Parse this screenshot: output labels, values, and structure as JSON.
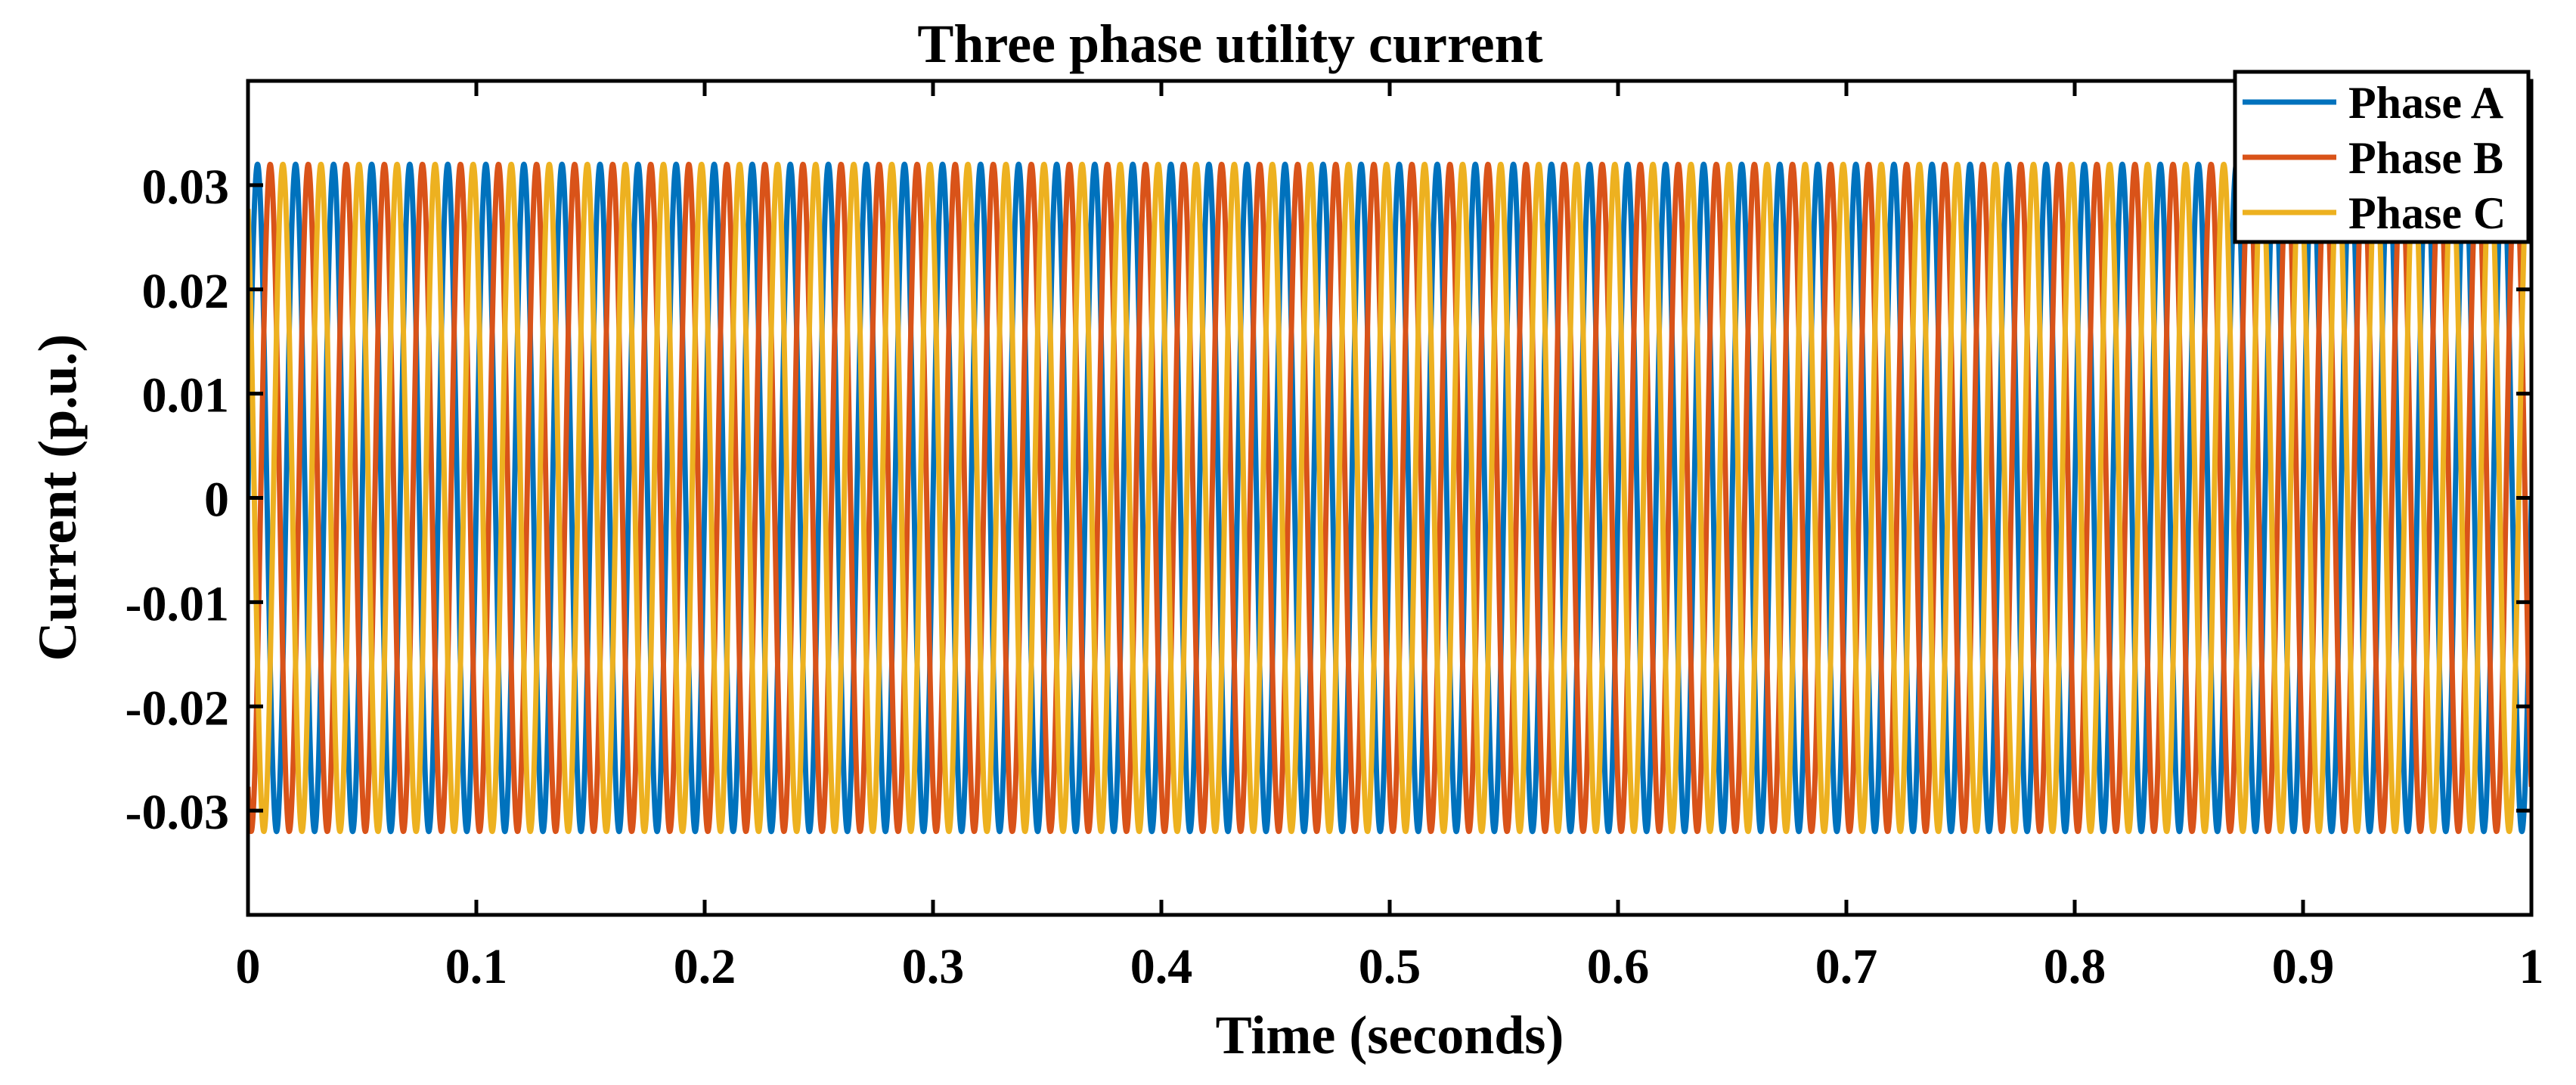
{
  "chart_data": {
    "type": "line",
    "title": "Three phase utility current",
    "xlabel": "Time (seconds)",
    "ylabel": "Current (p.u.)",
    "xlim": [
      0,
      1
    ],
    "ylim": [
      -0.04,
      0.04
    ],
    "x_ticks": [
      0,
      0.1,
      0.2,
      0.3,
      0.4,
      0.5,
      0.6,
      0.7,
      0.8,
      0.9,
      1
    ],
    "x_tick_labels": [
      "0",
      "0.1",
      "0.2",
      "0.3",
      "0.4",
      "0.5",
      "0.6",
      "0.7",
      "0.8",
      "0.9",
      "1"
    ],
    "y_ticks": [
      0.03,
      0.02,
      0.01,
      0,
      -0.01,
      -0.02,
      -0.03
    ],
    "y_tick_labels": [
      "0.03",
      "0.02",
      "0.01",
      "0",
      "-0.01",
      "-0.02",
      "-0.03"
    ],
    "grid": false,
    "legend_position": "top-right",
    "waveform": {
      "shape": "sine",
      "amplitude": 0.032,
      "frequency_hz": 60,
      "t_start": 0,
      "t_end": 1
    },
    "series": [
      {
        "name": "Phase A",
        "phase_deg": 0,
        "color": "#0072BD"
      },
      {
        "name": "Phase B",
        "phase_deg": -120,
        "color": "#D95319"
      },
      {
        "name": "Phase C",
        "phase_deg": 120,
        "color": "#EDB120"
      }
    ]
  }
}
